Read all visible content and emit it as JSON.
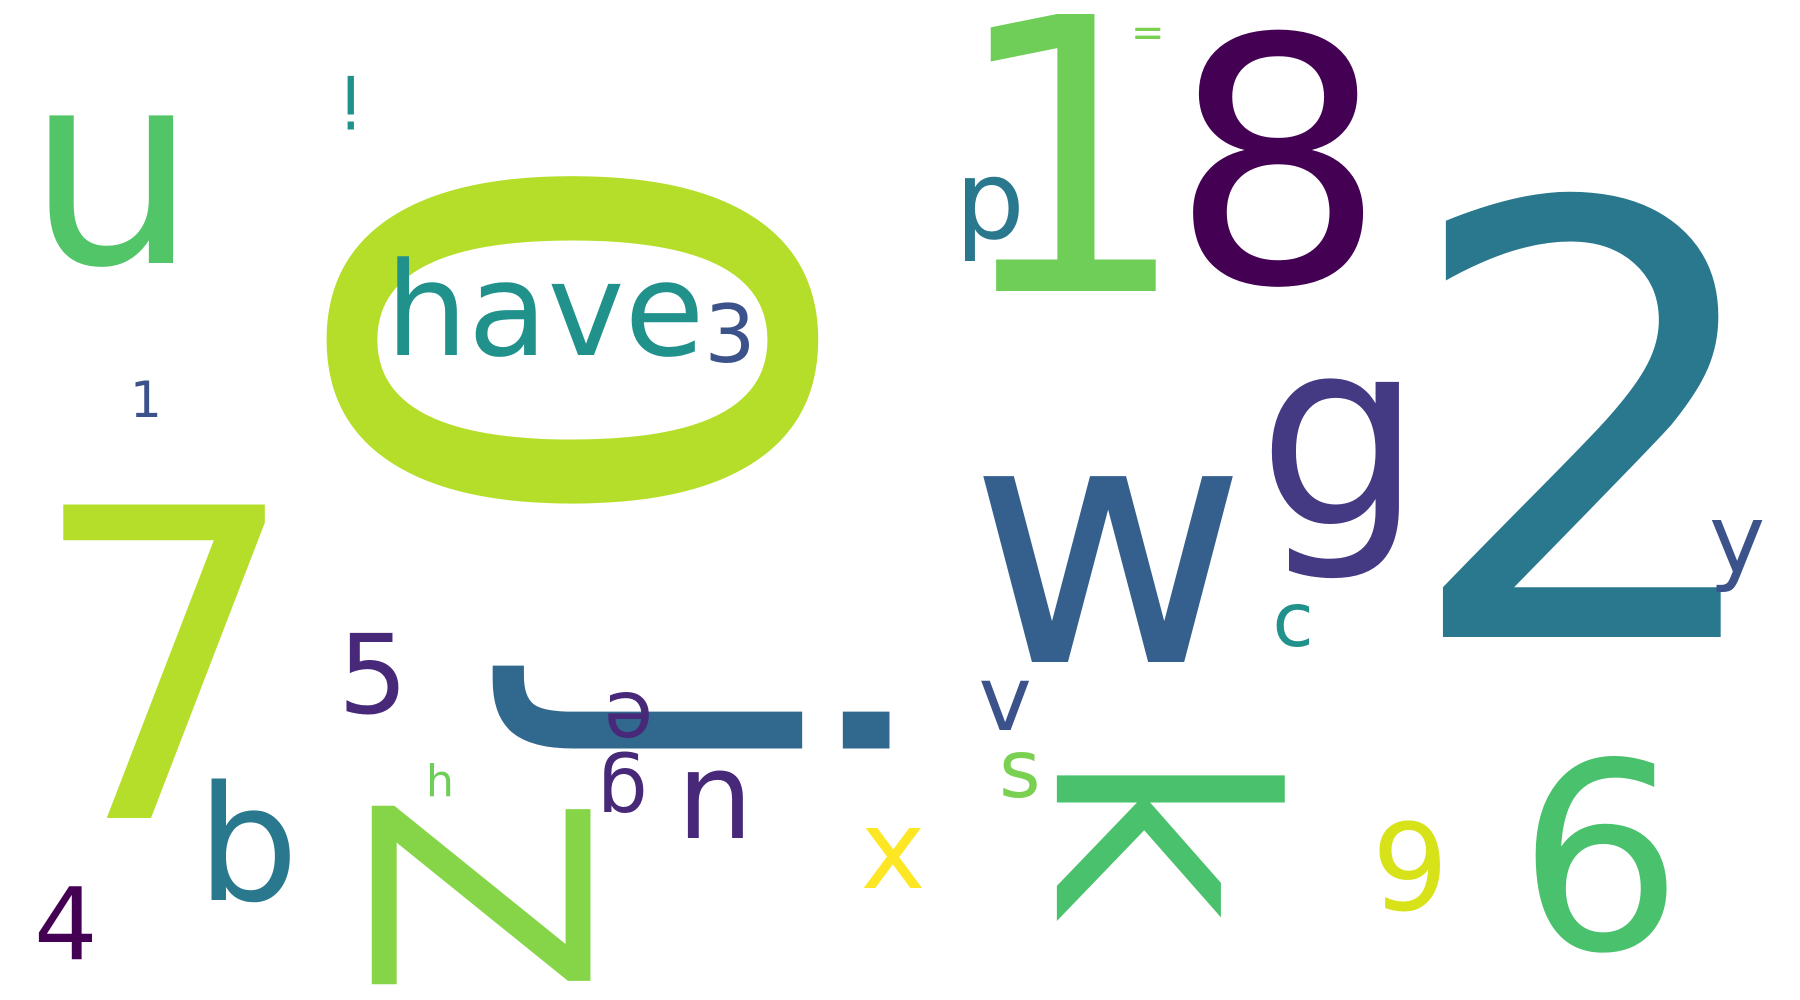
{
  "words": [
    {
      "text": "0",
      "color": "#b5de2b",
      "rotate": 90
    },
    {
      "text": "have",
      "color": "#21918c",
      "rotate": 0
    },
    {
      "text": "3",
      "color": "#3b528b",
      "rotate": 0
    },
    {
      "text": "u",
      "color": "#52c569",
      "rotate": 0
    },
    {
      "text": "i",
      "color": "#21918c",
      "rotate": 180
    },
    {
      "text": "1",
      "color": "#3b528b",
      "rotate": 0
    },
    {
      "text": "7",
      "color": "#b5de2b",
      "rotate": 0
    },
    {
      "text": "4",
      "color": "#440154",
      "rotate": 0
    },
    {
      "text": "b",
      "color": "#2a788e",
      "rotate": 0
    },
    {
      "text": "5",
      "color": "#482878",
      "rotate": 0
    },
    {
      "text": "h",
      "color": "#6ece58",
      "rotate": 0
    },
    {
      "text": "Z",
      "color": "#86d549",
      "rotate": 90
    },
    {
      "text": "j",
      "color": "#31688e",
      "rotate": 90
    },
    {
      "text": "e",
      "color": "#482878",
      "rotate": 180
    },
    {
      "text": "g",
      "color": "#482878",
      "rotate": 180
    },
    {
      "text": "n",
      "color": "#482878",
      "rotate": 0
    },
    {
      "text": "x",
      "color": "#fde725",
      "rotate": 0
    },
    {
      "text": "1",
      "color": "#6ece58",
      "rotate": 0
    },
    {
      "text": "p",
      "color": "#2a788e",
      "rotate": 0
    },
    {
      "text": "=",
      "color": "#7ad151",
      "rotate": 0
    },
    {
      "text": "8",
      "color": "#440154",
      "rotate": 0
    },
    {
      "text": "g",
      "color": "#443983",
      "rotate": 0
    },
    {
      "text": "w",
      "color": "#355f8d",
      "rotate": 0
    },
    {
      "text": "c",
      "color": "#21918c",
      "rotate": 0
    },
    {
      "text": "v",
      "color": "#3b528b",
      "rotate": 0
    },
    {
      "text": "s",
      "color": "#7ad151",
      "rotate": 0
    },
    {
      "text": "k",
      "color": "#4ac16d",
      "rotate": 90
    },
    {
      "text": "9",
      "color": "#d8e219",
      "rotate": 0
    },
    {
      "text": "2",
      "color": "#2a788e",
      "rotate": 0
    },
    {
      "text": "y",
      "color": "#3b528b",
      "rotate": 0
    },
    {
      "text": "6",
      "color": "#4ac16d",
      "rotate": 0
    }
  ]
}
